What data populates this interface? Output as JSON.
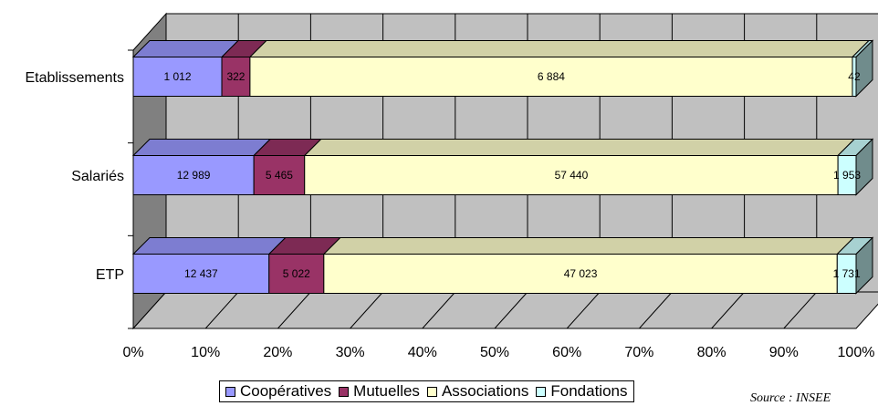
{
  "chart_data": {
    "type": "bar",
    "orientation": "horizontal",
    "stacked": "percent",
    "three_d": true,
    "categories": [
      "Etablissements",
      "Salariés",
      "ETP"
    ],
    "series": [
      {
        "name": "Coopératives",
        "color": "#9999FF",
        "values": [
          1012,
          12989,
          12437
        ],
        "labels": [
          "1 012",
          "12 989",
          "12 437"
        ]
      },
      {
        "name": "Mutuelles",
        "color": "#993366",
        "values": [
          322,
          5465,
          5022
        ],
        "labels": [
          "322",
          "5 465",
          "5 022"
        ]
      },
      {
        "name": "Associations",
        "color": "#FFFFCC",
        "values": [
          6884,
          57440,
          47023
        ],
        "labels": [
          "6 884",
          "57 440",
          "47 023"
        ]
      },
      {
        "name": "Fondations",
        "color": "#CCFFFF",
        "values": [
          42,
          1953,
          1731
        ],
        "labels": [
          "42",
          "1 953",
          "1 731"
        ]
      }
    ],
    "xticks": [
      "0%",
      "10%",
      "20%",
      "30%",
      "40%",
      "50%",
      "60%",
      "70%",
      "80%",
      "90%",
      "100%"
    ],
    "xlim": [
      0,
      100
    ],
    "grid": true,
    "legend_position": "bottom"
  },
  "source_text": "Source : INSEE"
}
